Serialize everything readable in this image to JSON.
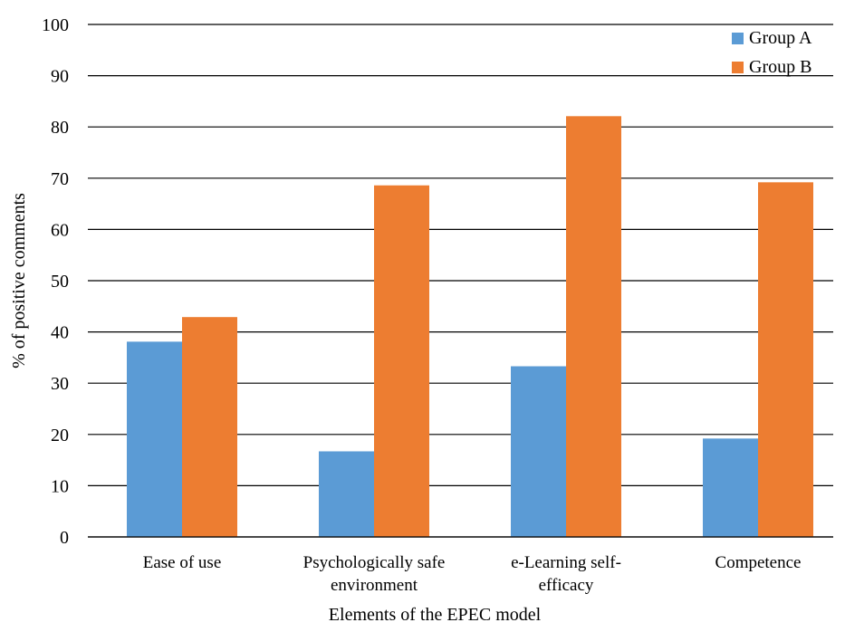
{
  "chart_data": {
    "type": "bar",
    "title": "",
    "xlabel": "Elements of the EPEC model",
    "ylabel": "% of positive comments",
    "ylim": [
      0,
      100
    ],
    "yticks": [
      0,
      10,
      20,
      30,
      40,
      50,
      60,
      70,
      80,
      90,
      100
    ],
    "grid": true,
    "legend_position": "top-right",
    "categories": [
      [
        "Ease of use"
      ],
      [
        "Psychologically safe",
        "environment"
      ],
      [
        "e-Learning self-",
        "efficacy"
      ],
      [
        "Competence"
      ]
    ],
    "series": [
      {
        "name": "Group A",
        "color": "#5B9BD5",
        "values": [
          38.1,
          16.7,
          33.3,
          19.2
        ]
      },
      {
        "name": "Group B",
        "color": "#ED7D31",
        "values": [
          42.9,
          68.6,
          82.1,
          69.2
        ]
      }
    ]
  }
}
